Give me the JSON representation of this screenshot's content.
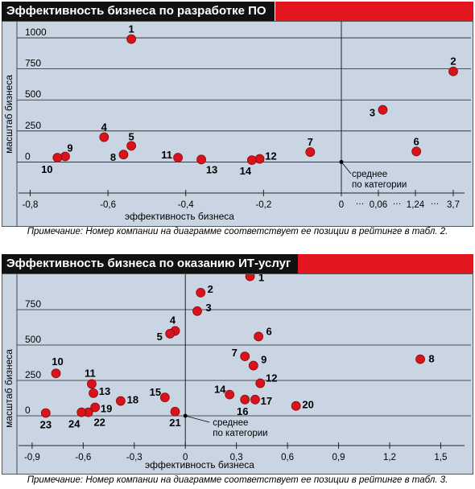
{
  "charts": [
    {
      "title": "Эффективность бизнеса по разработке ПО",
      "note": "Примечание: Номер компании на диаграмме соответствует ее позиции в рейтинге в табл. 2.",
      "accent": "#e2161e",
      "point_color": "#d9131b",
      "background": "#c9d5e3",
      "chart_data": {
        "type": "scatter",
        "xlabel": "эффективность бизнеса",
        "ylabel": "масштаб бизнеса",
        "axis_break": "…",
        "x_ticks_left": [
          "-0,8",
          "-0,6",
          "-0,4",
          "-0,2",
          "0"
        ],
        "x_ticks_right": [
          "0,06",
          "1,24",
          "3,7"
        ],
        "xlim_left": [
          -0.83,
          0
        ],
        "y_ticks": [
          "0",
          "250",
          "500",
          "750",
          "1000"
        ],
        "ylim": [
          -250,
          1130
        ],
        "origin_label": [
          "среднее",
          "по категории"
        ],
        "points": [
          {
            "label": "1",
            "x": -0.54,
            "y": 990
          },
          {
            "label": "2",
            "x": 3.7,
            "y": 730
          },
          {
            "label": "3",
            "x": 0.2,
            "y": 420
          },
          {
            "label": "4",
            "x": -0.61,
            "y": 200
          },
          {
            "label": "5",
            "x": -0.54,
            "y": 130
          },
          {
            "label": "6",
            "x": 1.3,
            "y": 85
          },
          {
            "label": "7",
            "x": -0.08,
            "y": 80
          },
          {
            "label": "8",
            "x": -0.56,
            "y": 60
          },
          {
            "label": "9",
            "x": -0.71,
            "y": 45
          },
          {
            "label": "10",
            "x": -0.73,
            "y": 35
          },
          {
            "label": "11",
            "x": -0.42,
            "y": 35
          },
          {
            "label": "12",
            "x": -0.21,
            "y": 25
          },
          {
            "label": "13",
            "x": -0.36,
            "y": 20
          },
          {
            "label": "14",
            "x": -0.23,
            "y": 15
          }
        ]
      }
    },
    {
      "title": "Эффективность бизнеса по оказанию ИТ-услуг",
      "note": "Примечание: Номер компании на диаграмме соответствует ее позиции в рейтинге в табл. 3.",
      "accent": "#e2161e",
      "point_color": "#d9131b",
      "background": "#c9d5e3",
      "chart_data": {
        "type": "scatter",
        "xlabel": "эффективность бизнеса",
        "ylabel": "масштаб бизнеса",
        "x_ticks": [
          "-0,9",
          "-0,6",
          "-0,3",
          "0",
          "0,3",
          "0,6",
          "0,9",
          "1,2",
          "1,5"
        ],
        "xlim": [
          -0.98,
          1.64
        ],
        "y_ticks": [
          "0",
          "250",
          "500",
          "750"
        ],
        "ylim": [
          -210,
          1000
        ],
        "origin_label": [
          "среднее",
          "по категории"
        ],
        "points": [
          {
            "label": "1",
            "x": 0.38,
            "y": 985
          },
          {
            "label": "2",
            "x": 0.09,
            "y": 870
          },
          {
            "label": "3",
            "x": 0.07,
            "y": 740
          },
          {
            "label": "4",
            "x": -0.06,
            "y": 600
          },
          {
            "label": "5",
            "x": -0.09,
            "y": 580
          },
          {
            "label": "6",
            "x": 0.43,
            "y": 560
          },
          {
            "label": "7",
            "x": 0.35,
            "y": 420
          },
          {
            "label": "8",
            "x": 1.38,
            "y": 400
          },
          {
            "label": "9",
            "x": 0.4,
            "y": 355
          },
          {
            "label": "10",
            "x": -0.76,
            "y": 300
          },
          {
            "label": "11",
            "x": -0.55,
            "y": 225
          },
          {
            "label": "12",
            "x": 0.44,
            "y": 230
          },
          {
            "label": "13",
            "x": -0.54,
            "y": 160
          },
          {
            "label": "14",
            "x": 0.26,
            "y": 150
          },
          {
            "label": "15",
            "x": -0.12,
            "y": 130
          },
          {
            "label": "16",
            "x": 0.35,
            "y": 115
          },
          {
            "label": "17",
            "x": 0.41,
            "y": 115
          },
          {
            "label": "18",
            "x": -0.38,
            "y": 105
          },
          {
            "label": "19",
            "x": -0.53,
            "y": 60
          },
          {
            "label": "20",
            "x": 0.65,
            "y": 70
          },
          {
            "label": "21",
            "x": -0.06,
            "y": 30
          },
          {
            "label": "22",
            "x": -0.57,
            "y": 25
          },
          {
            "label": "23",
            "x": -0.82,
            "y": 20
          },
          {
            "label": "24",
            "x": -0.61,
            "y": 25
          }
        ]
      }
    }
  ]
}
